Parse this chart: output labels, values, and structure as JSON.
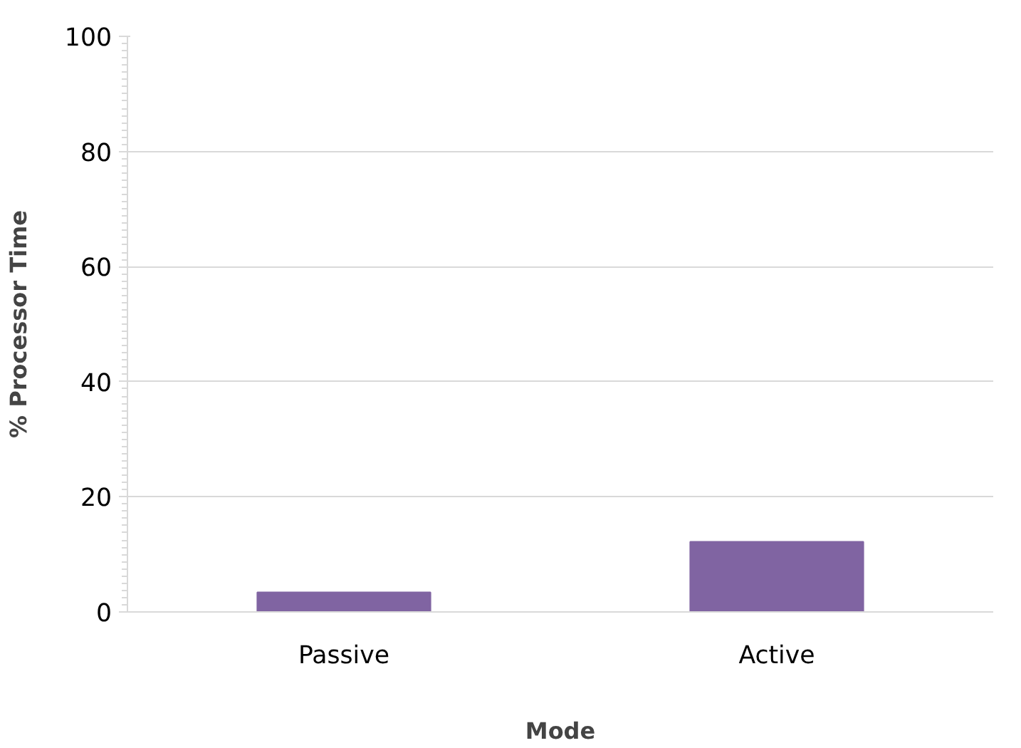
{
  "chart_data": {
    "type": "bar",
    "xlabel": "Mode",
    "ylabel": "% Processor Time",
    "categories": [
      "Passive",
      "Active"
    ],
    "values": [
      3.4,
      12.2
    ],
    "color": "#8064a2",
    "ylim": [
      0,
      100
    ],
    "yticks": [
      0,
      20,
      40,
      60,
      80,
      100
    ],
    "grid": "y"
  }
}
